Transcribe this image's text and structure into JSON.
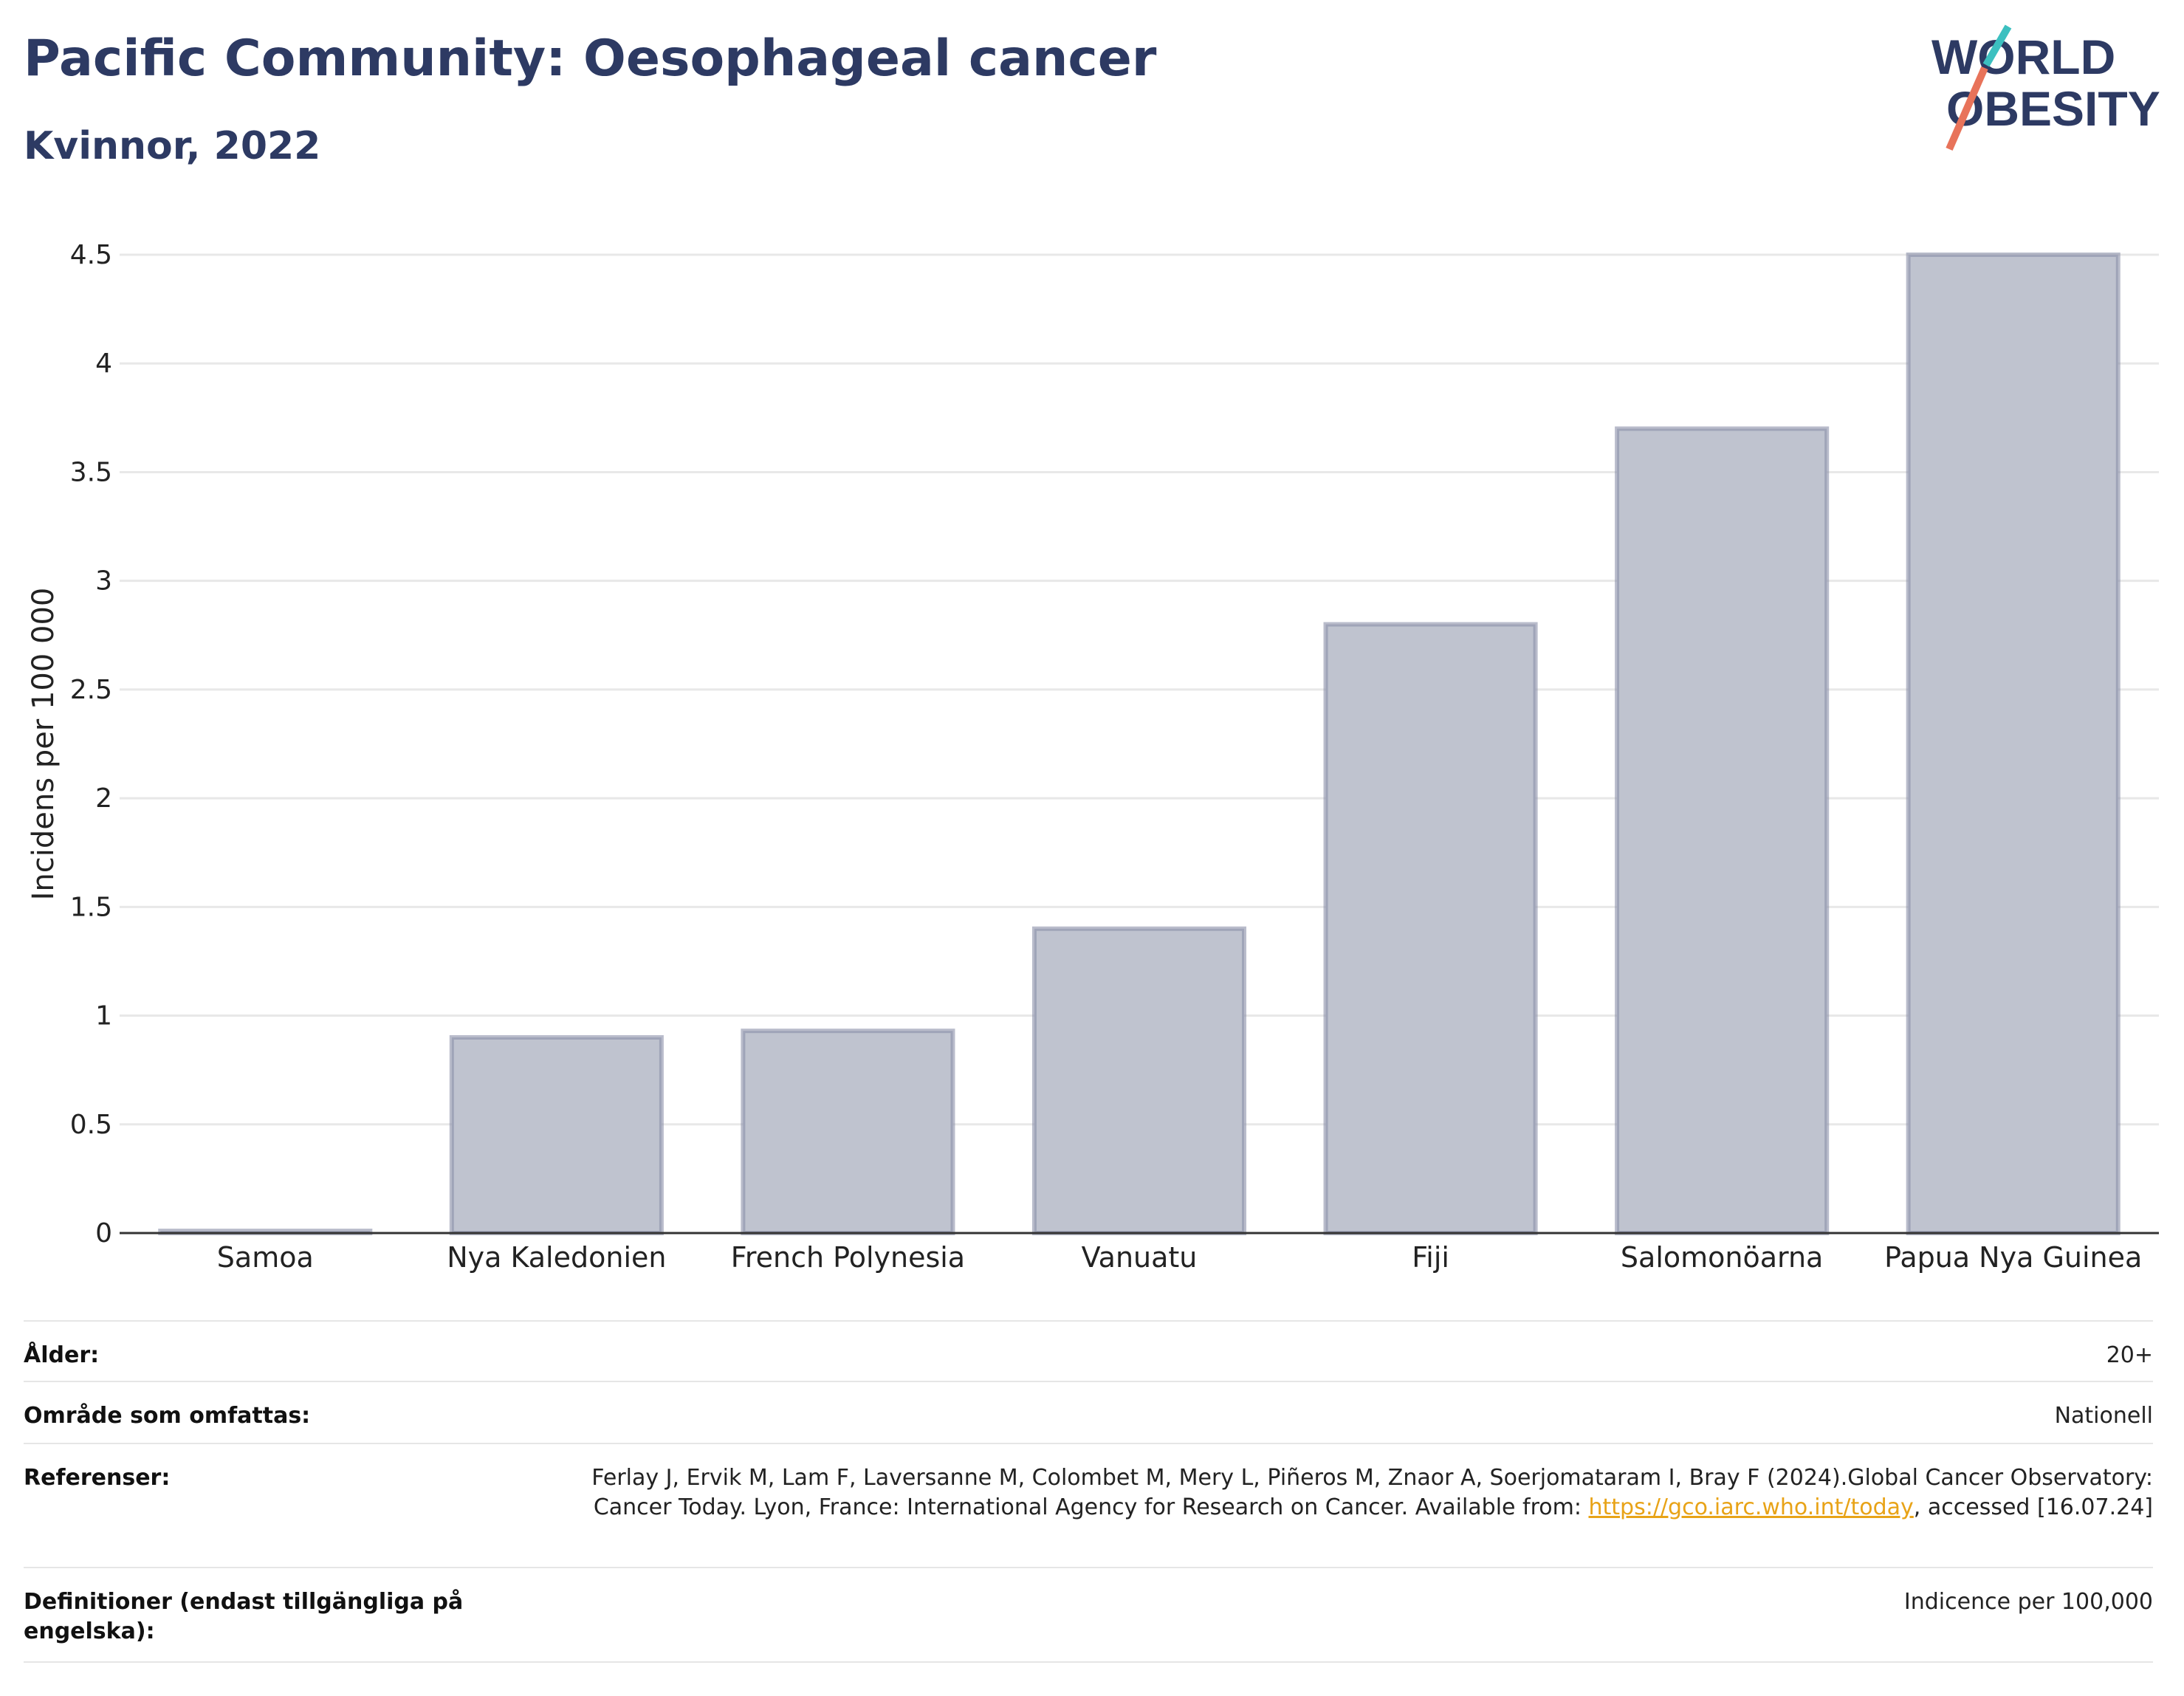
{
  "header": {
    "title": "Pacific Community: Oesophageal cancer",
    "subtitle": "Kvinnor, 2022"
  },
  "logo": {
    "line1": "WORLD",
    "line2": "OBESITY"
  },
  "colors": {
    "bar_fill": "#bfc3cf",
    "bar_stroke": "#8a90a8",
    "title": "#2d3a63",
    "grid": "#e8e8e8",
    "link": "#e8a317",
    "logo_teal": "#3cc0c0",
    "logo_coral": "#e8735a"
  },
  "chart_data": {
    "type": "bar",
    "categories": [
      "Samoa",
      "Nya Kaledonien",
      "French Polynesia",
      "Vanuatu",
      "Fiji",
      "Salomonöarna",
      "Papua Nya Guinea"
    ],
    "values": [
      0.01,
      0.9,
      0.93,
      1.4,
      2.8,
      3.7,
      4.5
    ],
    "ylabel": "Incidens per 100 000",
    "ylim": [
      0,
      4.5
    ],
    "yticks": [
      "0",
      "0.5",
      "1",
      "1.5",
      "2",
      "2.5",
      "3",
      "3.5",
      "4",
      "4.5"
    ],
    "grid": true
  },
  "meta": {
    "age_label": "Ålder:",
    "age_value": "20+",
    "area_label": "Område som omfattas:",
    "area_value": "Nationell",
    "ref_label": "Referenser:",
    "ref_text1": "Ferlay J, Ervik M, Lam F, Laversanne M, Colombet M, Mery L, Piñeros M, Znaor A, Soerjomataram I, Bray F (2024).Global Cancer Observatory: Cancer Today. Lyon, France: International Agency for Research on Cancer. Available from: ",
    "ref_link": "https://gco.iarc.who.int/today",
    "ref_text2": ", accessed [16.07.24]",
    "def_label": "Definitioner (endast tillgängliga på engelska):",
    "def_value": "Indicence per 100,000"
  }
}
